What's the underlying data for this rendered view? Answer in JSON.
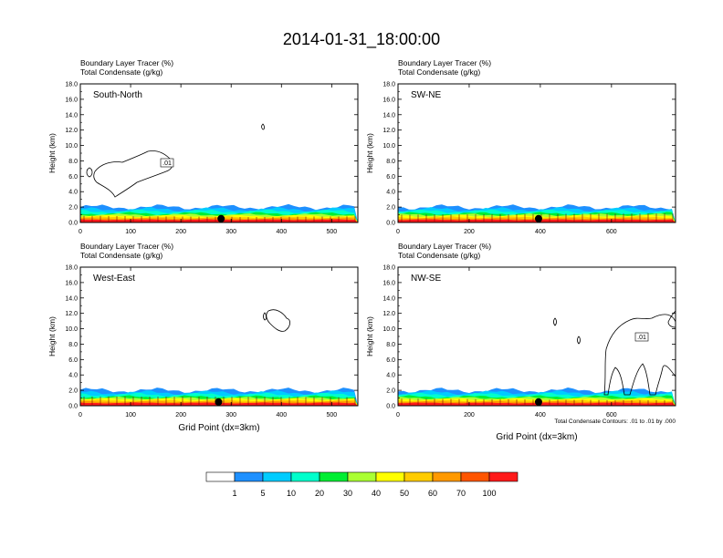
{
  "title": "2014-01-31_18:00:00",
  "panel_subtitle_1": "Boundary Layer Tracer   (%)",
  "panel_subtitle_2": "Total Condensate   (g/kg)",
  "ylabel": "Height (km)",
  "xlabel": "Grid Point (dx=3km)",
  "contour_note": "Total Condensate Contours: .01 to .01 by .000",
  "colors": {
    "shading": [
      "#ffffff",
      "#1e90ff",
      "#00ccff",
      "#00ffcc",
      "#00ee33",
      "#aaff33",
      "#ffff00",
      "#ffcc00",
      "#ff9900",
      "#ff5500",
      "#ff1a1a"
    ]
  },
  "colorbar": {
    "labels": [
      "1",
      "5",
      "10",
      "20",
      "30",
      "40",
      "50",
      "60",
      "70",
      "100"
    ]
  },
  "chart_data": [
    {
      "type": "heatmap",
      "panel": "South-North",
      "title": "South-North",
      "subtitle": [
        "Boundary Layer Tracer   (%)",
        "Total Condensate   (g/kg)"
      ],
      "xlabel": "",
      "ylabel": "Height (km)",
      "xlim": [
        0,
        552
      ],
      "ylim": [
        0,
        18
      ],
      "xticks": [
        0,
        100,
        200,
        300,
        400,
        500
      ],
      "yticks": [
        "0.0",
        "2.0",
        "4.0",
        "6.0",
        "8.0",
        "10.0",
        "12.0",
        "14.0",
        "16.0",
        "18.0"
      ],
      "tracer_top_km": 2.0,
      "marker_x": 280,
      "contour_label": ".01"
    },
    {
      "type": "heatmap",
      "panel": "SW-NE",
      "title": "SW-NE",
      "subtitle": [
        "Boundary Layer Tracer   (%)",
        "Total Condensate   (g/kg)"
      ],
      "xlabel": "",
      "ylabel": "Height (km)",
      "xlim": [
        0,
        780
      ],
      "ylim": [
        0,
        18
      ],
      "xticks": [
        0,
        200,
        400,
        600
      ],
      "yticks": [
        "0.0",
        "2.0",
        "4.0",
        "6.0",
        "8.0",
        "10.0",
        "12.0",
        "14.0",
        "16.0",
        "18.0"
      ],
      "tracer_top_km": 2.0,
      "marker_x": 395,
      "contour_label": ""
    },
    {
      "type": "heatmap",
      "panel": "West-East",
      "title": "West-East",
      "subtitle": [
        "Boundary Layer Tracer   (%)",
        "Total Condensate   (g/kg)"
      ],
      "xlabel": "Grid Point (dx=3km)",
      "ylabel": "Height (km)",
      "xlim": [
        0,
        552
      ],
      "ylim": [
        0,
        18
      ],
      "xticks": [
        0,
        100,
        200,
        300,
        400,
        500
      ],
      "yticks": [
        "0.0",
        "2.0",
        "4.0",
        "6.0",
        "8.0",
        "10.0",
        "12.0",
        "14.0",
        "16.0",
        "18.0"
      ],
      "tracer_top_km": 2.0,
      "marker_x": 275,
      "contour_label": ""
    },
    {
      "type": "heatmap",
      "panel": "NW-SE",
      "title": "NW-SE",
      "subtitle": [
        "Boundary Layer Tracer   (%)",
        "Total Condensate   (g/kg)"
      ],
      "xlabel": "Grid Point (dx=3km)",
      "ylabel": "Height (km)",
      "xlim": [
        0,
        780
      ],
      "ylim": [
        0,
        18
      ],
      "xticks": [
        0,
        200,
        400,
        600
      ],
      "yticks": [
        "0.0",
        "2.0",
        "4.0",
        "6.0",
        "8.0",
        "10.0",
        "12.0",
        "14.0",
        "16.0",
        "18.0"
      ],
      "tracer_top_km": 2.0,
      "marker_x": 395,
      "contour_label": ".01"
    }
  ]
}
